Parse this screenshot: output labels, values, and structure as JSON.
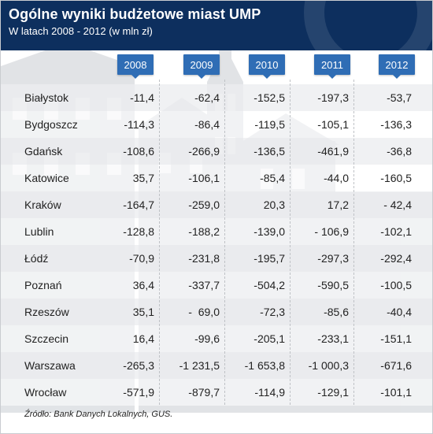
{
  "header": {
    "title": "Ogólne wyniki budżetowe miast UMP",
    "subtitle": "W latach 2008 - 2012 (w mln zł)"
  },
  "colors": {
    "header_bg": "#0d2f5e",
    "column_badge": "#2f6db5",
    "row_shade": "#ecedef"
  },
  "chart_data": {
    "type": "table",
    "title": "Ogólne wyniki budżetowe miast UMP",
    "subtitle": "W latach 2008 - 2012 (w mln zł)",
    "columns": [
      "2008",
      "2009",
      "2010",
      "2011",
      "2012"
    ],
    "rows": [
      {
        "city": "Białystok",
        "values": [
          "-11,4",
          "-62,4",
          "-152,5",
          "-197,3",
          "-53,7"
        ]
      },
      {
        "city": "Bydgoszcz",
        "values": [
          "-114,3",
          "-86,4",
          "-119,5",
          "-105,1",
          "-136,3"
        ]
      },
      {
        "city": "Gdańsk",
        "values": [
          "-108,6",
          "-266,9",
          "-136,5",
          "-461,9",
          "-36,8"
        ]
      },
      {
        "city": "Katowice",
        "values": [
          "35,7",
          "-106,1",
          "-85,4",
          "-44,0",
          "-160,5"
        ]
      },
      {
        "city": "Kraków",
        "values": [
          "-164,7",
          "-259,0",
          "20,3",
          "17,2",
          "- 42,4"
        ]
      },
      {
        "city": "Lublin",
        "values": [
          "-128,8",
          "-188,2",
          "-139,0",
          "- 106,9",
          "-102,1"
        ]
      },
      {
        "city": "Łódź",
        "values": [
          "-70,9",
          "-231,8",
          "-195,7",
          "-297,3",
          "-292,4"
        ]
      },
      {
        "city": "Poznań",
        "values": [
          "36,4",
          "-337,7",
          "-504,2",
          "-590,5",
          "-100,5"
        ]
      },
      {
        "city": "Rzeszów",
        "values": [
          "35,1",
          "-  69,0",
          "-72,3",
          "-85,6",
          "-40,4"
        ]
      },
      {
        "city": "Szczecin",
        "values": [
          "16,4",
          "-99,6",
          "-205,1",
          "-233,1",
          "-151,1"
        ]
      },
      {
        "city": "Warszawa",
        "values": [
          "-265,3",
          "-1 231,5",
          "-1 653,8",
          "-1 000,3",
          "-671,6"
        ]
      },
      {
        "city": "Wrocław",
        "values": [
          "-571,9",
          "-879,7",
          "-114,9",
          "-129,1",
          "-101,1"
        ]
      }
    ]
  },
  "source": "Źródło: Bank Danych Lokalnych, GUS."
}
